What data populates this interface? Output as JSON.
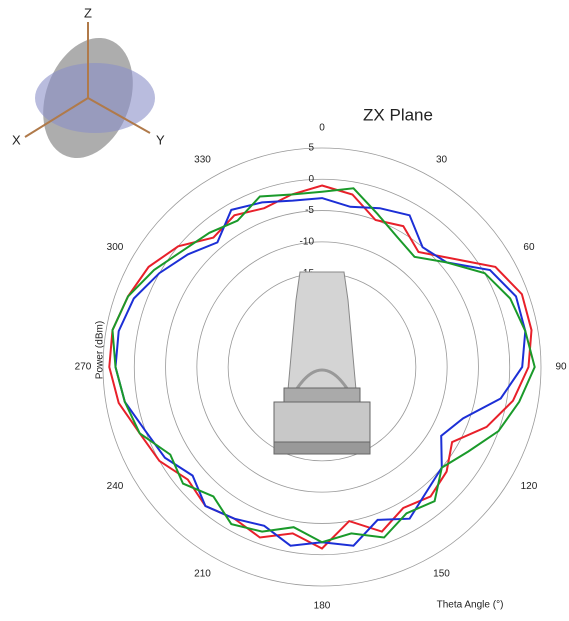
{
  "axes_icon": {
    "z": "Z",
    "x": "X",
    "y": "Y"
  },
  "chart_data": {
    "type": "polar",
    "title": "ZX Plane",
    "theta_label": "Theta  Angle (°)",
    "r_label": "Power (dBm)",
    "theta_direction": "clockwise",
    "theta_zero": "top",
    "thetaticks": [
      0,
      30,
      60,
      90,
      120,
      150,
      180,
      210,
      240,
      270,
      300,
      330
    ],
    "rlim": [
      -30,
      5
    ],
    "rticks": [
      -15,
      -10,
      -5,
      0,
      5
    ],
    "grid": true,
    "x": [
      0,
      10,
      20,
      30,
      40,
      50,
      60,
      70,
      80,
      90,
      100,
      110,
      120,
      130,
      140,
      150,
      160,
      170,
      180,
      190,
      200,
      210,
      220,
      230,
      240,
      250,
      260,
      270,
      280,
      290,
      300,
      310,
      320,
      330,
      340,
      350
    ],
    "series": [
      {
        "name": "red",
        "color": "#e8202a",
        "values": [
          -1,
          -2,
          -5,
          -4,
          -6,
          -3,
          2,
          4,
          4,
          3,
          1,
          -2,
          -6,
          -4,
          -3,
          -4,
          -2,
          -5,
          -1,
          -3,
          -1,
          -2,
          -1,
          -2,
          0,
          1,
          3,
          4,
          4,
          3,
          2,
          0,
          -3,
          -2,
          -3,
          -2
        ]
      },
      {
        "name": "blue",
        "color": "#1c2fd6",
        "values": [
          -3,
          -4,
          -3,
          -2,
          -5,
          -4,
          1,
          3,
          3,
          2,
          -1,
          -6,
          -8,
          -5,
          -4,
          -2,
          -4,
          -1,
          -2,
          -1,
          -3,
          -2,
          -1,
          -3,
          -1,
          0,
          2,
          3,
          3,
          2,
          0,
          -2,
          -4,
          -1,
          -2,
          -3
        ]
      },
      {
        "name": "green",
        "color": "#1a9a2a",
        "values": [
          -2,
          -1,
          -4,
          -6,
          -7,
          -4,
          0,
          2,
          3,
          4,
          2,
          0,
          -3,
          -5,
          -2,
          -3,
          -1,
          -3,
          -2,
          -4,
          -2,
          -1,
          -3,
          -1,
          -2,
          1,
          2,
          3,
          4,
          3,
          1,
          -1,
          -2,
          -3,
          -1,
          -2
        ]
      }
    ]
  }
}
